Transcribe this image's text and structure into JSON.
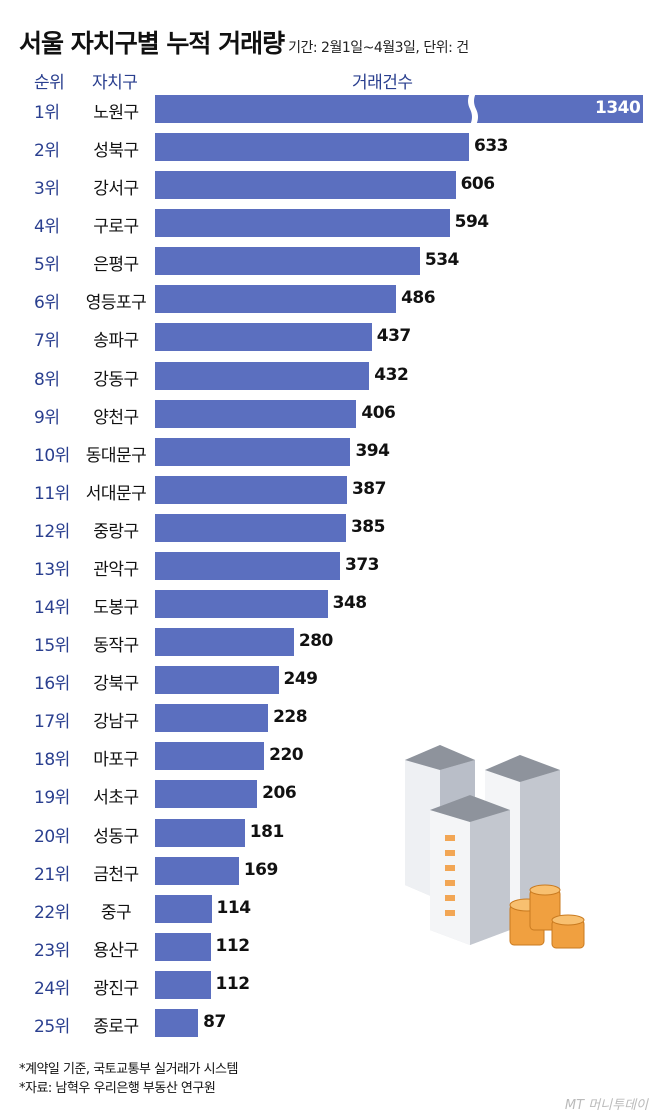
{
  "title": "서울 자치구별 누적 거래량",
  "subtitle": "기간: 2월1일~4월3일, 단위: 건",
  "headers": {
    "rank": "순위",
    "district": "자치구",
    "count": "거래건수"
  },
  "notes": [
    "*계약일 기준, 국토교통부 실거래가 시스템",
    "*자료: 남혁우 우리은행 부동산 연구원"
  ],
  "logo": "MT 머니투데이",
  "colors": {
    "bar": "#5b6fbf",
    "header": "#2a3f8f"
  },
  "chart_data": {
    "type": "bar",
    "orientation": "horizontal",
    "title": "서울 자치구별 누적 거래량",
    "xlabel": "거래건수",
    "axis_break": "first bar (1340) truncated with break mark",
    "ranks": [
      "1위",
      "2위",
      "3위",
      "4위",
      "5위",
      "6위",
      "7위",
      "8위",
      "9위",
      "10위",
      "11위",
      "12위",
      "13위",
      "14위",
      "15위",
      "16위",
      "17위",
      "18위",
      "19위",
      "20위",
      "21위",
      "22위",
      "23위",
      "24위",
      "25위"
    ],
    "categories": [
      "노원구",
      "성북구",
      "강서구",
      "구로구",
      "은평구",
      "영등포구",
      "송파구",
      "강동구",
      "양천구",
      "동대문구",
      "서대문구",
      "중랑구",
      "관악구",
      "도봉구",
      "동작구",
      "강북구",
      "강남구",
      "마포구",
      "서초구",
      "성동구",
      "금천구",
      "중구",
      "용산구",
      "광진구",
      "종로구"
    ],
    "values": [
      1340,
      633,
      606,
      594,
      534,
      486,
      437,
      432,
      406,
      394,
      387,
      385,
      373,
      348,
      280,
      249,
      228,
      220,
      206,
      181,
      169,
      114,
      112,
      112,
      87
    ]
  }
}
